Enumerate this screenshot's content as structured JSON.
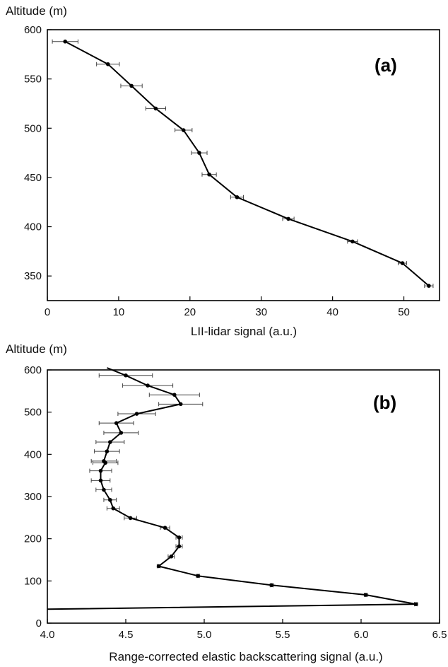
{
  "chart_data": [
    {
      "type": "line",
      "panel_label": "(a)",
      "ylabel": "Altitude (m)",
      "xlabel": "LII-lidar signal (a.u.)",
      "xlim": [
        0,
        55
      ],
      "ylim": [
        325,
        600
      ],
      "x_ticks": [
        0,
        10,
        20,
        30,
        40,
        50
      ],
      "y_ticks": [
        350,
        400,
        450,
        500,
        550,
        600
      ],
      "grid": false,
      "legend": "none",
      "series": [
        {
          "points": [
            {
              "x": 2.5,
              "y": 588,
              "err": 1.8
            },
            {
              "x": 8.5,
              "y": 565,
              "err": 1.6
            },
            {
              "x": 11.8,
              "y": 543,
              "err": 1.5
            },
            {
              "x": 15.2,
              "y": 520,
              "err": 1.4
            },
            {
              "x": 19.1,
              "y": 498,
              "err": 1.2
            },
            {
              "x": 21.3,
              "y": 475,
              "err": 1.1
            },
            {
              "x": 22.7,
              "y": 453,
              "err": 1.0
            },
            {
              "x": 26.6,
              "y": 430,
              "err": 0.9
            },
            {
              "x": 33.8,
              "y": 408,
              "err": 0.8
            },
            {
              "x": 42.8,
              "y": 385,
              "err": 0.7
            },
            {
              "x": 49.8,
              "y": 363,
              "err": 0.6
            },
            {
              "x": 53.5,
              "y": 340,
              "err": 0.6
            }
          ]
        }
      ]
    },
    {
      "type": "line",
      "panel_label": "(b)",
      "ylabel": "Altitude (m)",
      "xlabel": "Range-corrected elastic backscattering signal (a.u.)",
      "xlim": [
        4.0,
        6.5
      ],
      "ylim": [
        0,
        600
      ],
      "x_ticks": [
        4.0,
        4.5,
        5.0,
        5.5,
        6.0,
        6.5
      ],
      "y_ticks": [
        0,
        100,
        200,
        300,
        400,
        500,
        600
      ],
      "grid": false,
      "legend": "none",
      "series": [
        {
          "line_start": {
            "x": 4.38,
            "y": 605
          },
          "line_end": {
            "x": 4.0,
            "y": 33
          },
          "points": [
            {
              "x": 4.5,
              "y": 587,
              "err": 0.17
            },
            {
              "x": 4.64,
              "y": 563,
              "err": 0.16
            },
            {
              "x": 4.81,
              "y": 541,
              "err": 0.16
            },
            {
              "x": 4.85,
              "y": 519,
              "err": 0.14
            },
            {
              "x": 4.57,
              "y": 496,
              "err": 0.12
            },
            {
              "x": 4.44,
              "y": 474,
              "err": 0.11
            },
            {
              "x": 4.47,
              "y": 451,
              "err": 0.11
            },
            {
              "x": 4.4,
              "y": 429,
              "err": 0.09
            },
            {
              "x": 4.38,
              "y": 407,
              "err": 0.08
            },
            {
              "x": 4.36,
              "y": 384,
              "err": 0.08
            },
            {
              "x": 4.37,
              "y": 380,
              "err": 0.08
            },
            {
              "x": 4.34,
              "y": 361,
              "err": 0.07
            },
            {
              "x": 4.34,
              "y": 338,
              "err": 0.06
            },
            {
              "x": 4.36,
              "y": 316,
              "err": 0.05
            },
            {
              "x": 4.4,
              "y": 292,
              "err": 0.04
            },
            {
              "x": 4.42,
              "y": 272,
              "err": 0.04
            },
            {
              "x": 4.53,
              "y": 249,
              "err": 0.04
            },
            {
              "x": 4.75,
              "y": 226,
              "err": 0.03
            },
            {
              "x": 4.84,
              "y": 203,
              "err": 0.02
            },
            {
              "x": 4.84,
              "y": 182,
              "err": 0.02
            },
            {
              "x": 4.79,
              "y": 158,
              "err": 0.02
            },
            {
              "x": 4.71,
              "y": 135,
              "err": 0.01
            },
            {
              "x": 4.96,
              "y": 112,
              "err": 0.01
            },
            {
              "x": 5.43,
              "y": 90,
              "err": 0.01
            },
            {
              "x": 6.03,
              "y": 67,
              "err": 0.01
            },
            {
              "x": 6.35,
              "y": 45,
              "err": 0.01
            }
          ]
        }
      ]
    }
  ]
}
